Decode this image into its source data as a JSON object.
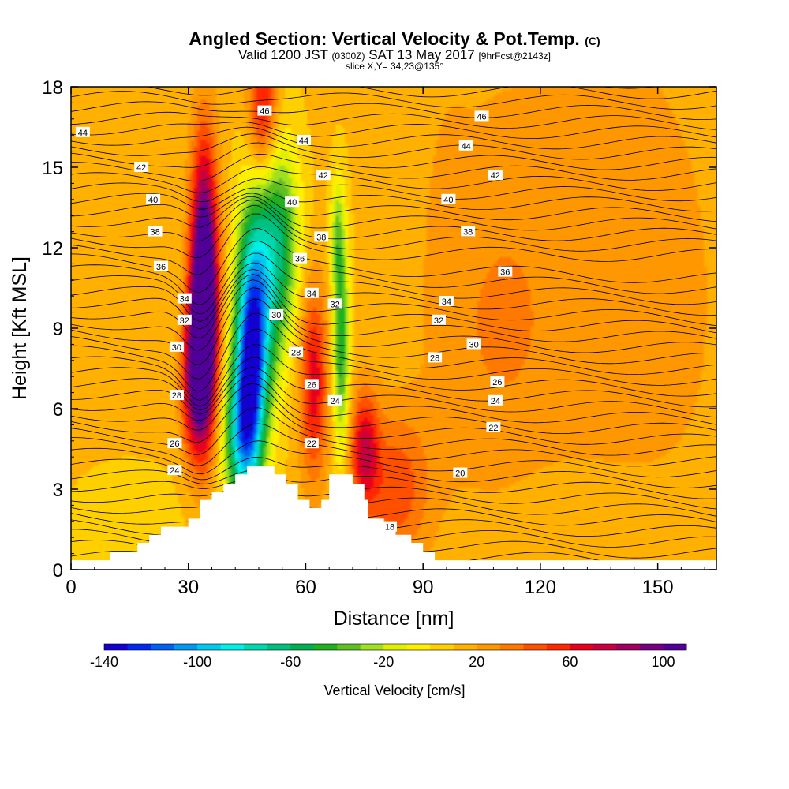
{
  "titles": {
    "line1_main": "Angled Section: Vertical Velocity & Pot.Temp.",
    "line1_unit": "(C)",
    "line2_a": "Valid 1200 JST",
    "line2_b": "(0300Z)",
    "line2_c": "SAT 13 May 2017",
    "line2_d": "[9hrFcst@2143z]",
    "line3": "slice X,Y= 34,23@135°"
  },
  "chart_data": {
    "type": "heatmap",
    "title": "Angled Section: Vertical Velocity & Pot.Temp. (C)",
    "xlabel": "Distance [nm]",
    "ylabel": "Height [Kft MSL]",
    "xlim": [
      0,
      165
    ],
    "ylim": [
      0,
      18
    ],
    "xticks": [
      0,
      30,
      60,
      90,
      120,
      150
    ],
    "yticks": [
      0,
      3,
      6,
      9,
      12,
      15,
      18
    ],
    "colorbar": {
      "label": "Vertical Velocity [cm/s]",
      "ticks": [
        -140,
        -100,
        -60,
        -20,
        20,
        60,
        100
      ],
      "range": [
        -140,
        110
      ],
      "colors": [
        "#1400d0",
        "#0028f0",
        "#0060f0",
        "#0098f0",
        "#00c8f0",
        "#00f0e8",
        "#00d8b0",
        "#00c080",
        "#00b050",
        "#20b020",
        "#60c020",
        "#a0e020",
        "#e0f000",
        "#fff000",
        "#ffd000",
        "#ffb000",
        "#ff9800",
        "#ff7800",
        "#ff5000",
        "#ff2800",
        "#e80020",
        "#c80040",
        "#a00060",
        "#780080",
        "#500098"
      ]
    },
    "terrain": [
      [
        0,
        0.35
      ],
      [
        10,
        0.35
      ],
      [
        10,
        0.65
      ],
      [
        17,
        0.65
      ],
      [
        17,
        1.0
      ],
      [
        20,
        1.0
      ],
      [
        20,
        1.3
      ],
      [
        23,
        1.3
      ],
      [
        23,
        1.6
      ],
      [
        30,
        1.6
      ],
      [
        30,
        1.9
      ],
      [
        33,
        1.9
      ],
      [
        33,
        2.6
      ],
      [
        36,
        2.6
      ],
      [
        36,
        2.9
      ],
      [
        39,
        2.9
      ],
      [
        39,
        3.2
      ],
      [
        42,
        3.2
      ],
      [
        42,
        3.55
      ],
      [
        45,
        3.55
      ],
      [
        45,
        3.85
      ],
      [
        52,
        3.85
      ],
      [
        52,
        3.55
      ],
      [
        55,
        3.55
      ],
      [
        55,
        3.2
      ],
      [
        58,
        3.2
      ],
      [
        58,
        2.6
      ],
      [
        61,
        2.6
      ],
      [
        61,
        2.3
      ],
      [
        64,
        2.3
      ],
      [
        64,
        2.6
      ],
      [
        66,
        2.6
      ],
      [
        66,
        3.55
      ],
      [
        72,
        3.55
      ],
      [
        72,
        3.2
      ],
      [
        75,
        3.2
      ],
      [
        75,
        2.6
      ],
      [
        76,
        2.6
      ],
      [
        76,
        1.9
      ],
      [
        80,
        1.9
      ],
      [
        80,
        1.6
      ],
      [
        83,
        1.6
      ],
      [
        83,
        1.3
      ],
      [
        87,
        1.3
      ],
      [
        87,
        1.0
      ],
      [
        90,
        1.0
      ],
      [
        90,
        0.65
      ],
      [
        93,
        0.65
      ],
      [
        93,
        0.35
      ],
      [
        165,
        0.35
      ]
    ],
    "velocity_features": [
      {
        "x": 34,
        "y": 11,
        "sx": 2.4,
        "sy": 3.5,
        "value": 105
      },
      {
        "x": 34,
        "y": 8.5,
        "sx": 2.2,
        "sy": 2.5,
        "value": 80
      },
      {
        "x": 31,
        "y": 7,
        "sx": 2.2,
        "sy": 2.0,
        "value": 55
      },
      {
        "x": 49,
        "y": 17.2,
        "sx": 2.5,
        "sy": 1.8,
        "value": 55
      },
      {
        "x": 62,
        "y": 7,
        "sx": 2.5,
        "sy": 2.5,
        "value": 55
      },
      {
        "x": 75,
        "y": 4.5,
        "sx": 2.5,
        "sy": 1.5,
        "value": 55
      },
      {
        "x": 46,
        "y": 7.5,
        "sx": 2.8,
        "sy": 3.2,
        "value": -120
      },
      {
        "x": 49,
        "y": 10.5,
        "sx": 4.0,
        "sy": 3.0,
        "value": -65
      },
      {
        "x": 43,
        "y": 5,
        "sx": 3.0,
        "sy": 2.0,
        "value": -70
      },
      {
        "x": 54,
        "y": 12.5,
        "sx": 3.5,
        "sy": 2.5,
        "value": -45
      },
      {
        "x": 69,
        "y": 8.5,
        "sx": 1.5,
        "sy": 3.0,
        "value": -60
      },
      {
        "x": 68,
        "y": 12.5,
        "sx": 1.2,
        "sy": 1.5,
        "value": -30
      },
      {
        "x": 107,
        "y": 9,
        "sx": 12,
        "sy": 6,
        "value": 15
      },
      {
        "x": 140,
        "y": 10,
        "sx": 20,
        "sy": 8,
        "value": 15
      },
      {
        "x": 128,
        "y": 1.5,
        "sx": 20,
        "sy": 2.2,
        "value": -8
      },
      {
        "x": 15,
        "y": 1.5,
        "sx": 10,
        "sy": 1.5,
        "value": -10
      },
      {
        "x": 96,
        "y": 12,
        "sx": 4,
        "sy": 5,
        "value": 5
      },
      {
        "x": 83,
        "y": 3,
        "sx": 6,
        "sy": 2,
        "value": 35
      }
    ],
    "isentrope_labels": [
      {
        "x": 3,
        "y": 16.3,
        "text": "44"
      },
      {
        "x": 49.5,
        "y": 17.1,
        "text": "46"
      },
      {
        "x": 105,
        "y": 16.9,
        "text": "46"
      },
      {
        "x": 59.5,
        "y": 16.0,
        "text": "44"
      },
      {
        "x": 101,
        "y": 15.8,
        "text": "44"
      },
      {
        "x": 18,
        "y": 15.0,
        "text": "42"
      },
      {
        "x": 64.5,
        "y": 14.7,
        "text": "42"
      },
      {
        "x": 108.5,
        "y": 14.7,
        "text": "42"
      },
      {
        "x": 21,
        "y": 13.8,
        "text": "40"
      },
      {
        "x": 56.5,
        "y": 13.7,
        "text": "40"
      },
      {
        "x": 96.5,
        "y": 13.8,
        "text": "40"
      },
      {
        "x": 21.5,
        "y": 12.6,
        "text": "38"
      },
      {
        "x": 64,
        "y": 12.4,
        "text": "38"
      },
      {
        "x": 101.5,
        "y": 12.6,
        "text": "38"
      },
      {
        "x": 23,
        "y": 11.3,
        "text": "36"
      },
      {
        "x": 58.5,
        "y": 11.6,
        "text": "36"
      },
      {
        "x": 111,
        "y": 11.1,
        "text": "36"
      },
      {
        "x": 29,
        "y": 10.1,
        "text": "34"
      },
      {
        "x": 61.5,
        "y": 10.3,
        "text": "34"
      },
      {
        "x": 67.5,
        "y": 9.9,
        "text": "32"
      },
      {
        "x": 96,
        "y": 10.0,
        "text": "34"
      },
      {
        "x": 29,
        "y": 9.3,
        "text": "32"
      },
      {
        "x": 52.5,
        "y": 9.5,
        "text": "30"
      },
      {
        "x": 94,
        "y": 9.3,
        "text": "32"
      },
      {
        "x": 27,
        "y": 8.3,
        "text": "30"
      },
      {
        "x": 57.5,
        "y": 8.1,
        "text": "28"
      },
      {
        "x": 103,
        "y": 8.4,
        "text": "30"
      },
      {
        "x": 93,
        "y": 7.9,
        "text": "28"
      },
      {
        "x": 27,
        "y": 6.5,
        "text": "28"
      },
      {
        "x": 61.5,
        "y": 6.9,
        "text": "26"
      },
      {
        "x": 109,
        "y": 7.0,
        "text": "26"
      },
      {
        "x": 67.5,
        "y": 6.3,
        "text": "24"
      },
      {
        "x": 108.5,
        "y": 6.3,
        "text": "24"
      },
      {
        "x": 26.5,
        "y": 4.7,
        "text": "26"
      },
      {
        "x": 61.5,
        "y": 4.7,
        "text": "22"
      },
      {
        "x": 108,
        "y": 5.3,
        "text": "22"
      },
      {
        "x": 26.5,
        "y": 3.7,
        "text": "24"
      },
      {
        "x": 99.5,
        "y": 3.6,
        "text": "20"
      },
      {
        "x": 81.5,
        "y": 1.6,
        "text": "18"
      }
    ]
  }
}
